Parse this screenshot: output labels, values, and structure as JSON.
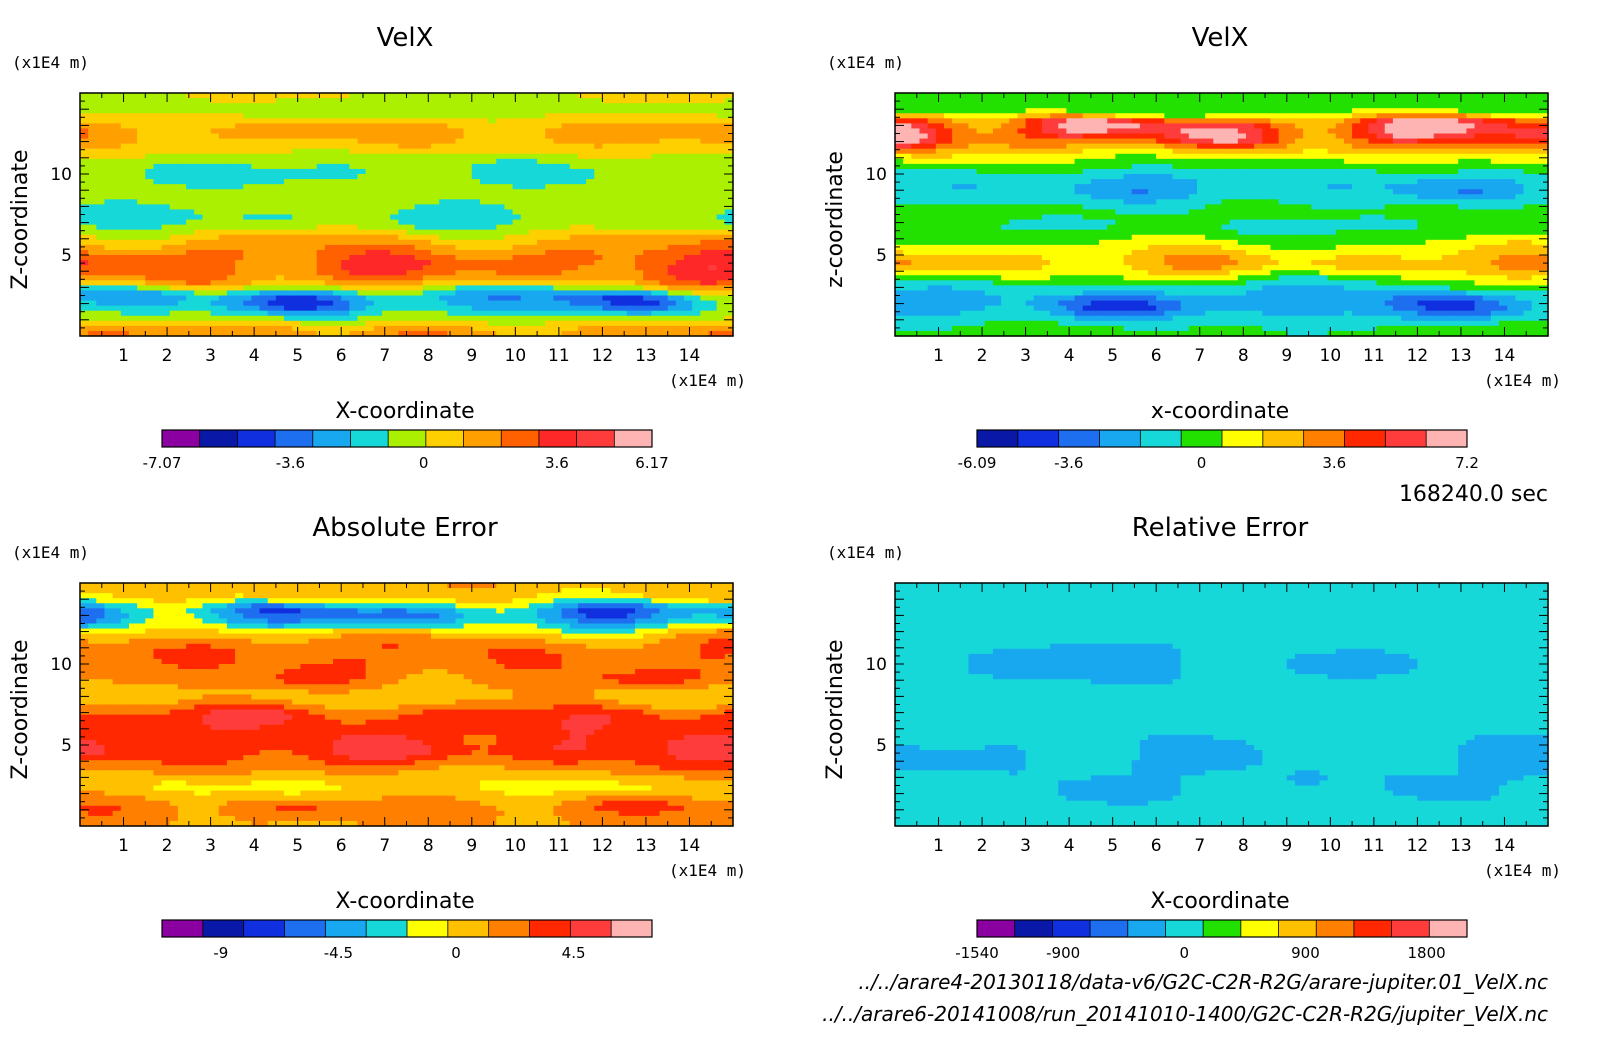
{
  "timestamp": "168240.0 sec",
  "files": [
    "../../arare4-20130118/data-v6/G2C-C2R-R2G/arare-jupiter.01_VelX.nc",
    "../../arare6-20141008/run_20141010-1400/G2C-C2R-R2G/jupiter_VelX.nc"
  ],
  "chart_data": [
    {
      "type": "heatmap",
      "title": "VelX",
      "xlabel": "X-coordinate",
      "ylabel": "Z-coordinate",
      "x_unit": "(x1E4 m)",
      "y_unit": "(x1E4 m)",
      "xlim": [
        0,
        15
      ],
      "ylim": [
        0,
        15
      ],
      "xticks": [
        "1",
        "2",
        "3",
        "4",
        "5",
        "6",
        "7",
        "8",
        "9",
        "10",
        "11",
        "12",
        "13",
        "14"
      ],
      "yticks": [
        "5",
        "10"
      ],
      "colorbar": {
        "colors": [
          "#8b00a0",
          "#0a18a8",
          "#1030e0",
          "#1e6ef0",
          "#18a8f0",
          "#16d8d8",
          "#aaf000",
          "#ffd000",
          "#ffa000",
          "#ff6000",
          "#ff2828",
          "#ff3c3c",
          "#ffb4b4"
        ],
        "labels": [
          "-7.07",
          "-3.6",
          "0",
          "3.6",
          "6.17"
        ],
        "min": -7.07,
        "max": 6.17
      },
      "field": [
        [
          11.3,
          0.3,
          1.5
        ],
        [
          12.0,
          1.6,
          1.0
        ],
        [
          12.5,
          2.0,
          0.8
        ],
        [
          13.6,
          -0.5,
          0.6
        ],
        [
          10.3,
          -2.0,
          1.3
        ],
        [
          9.7,
          -1.2,
          1.0
        ],
        [
          8.5,
          0.8,
          1.2
        ],
        [
          8.0,
          -1.5,
          1.0
        ],
        [
          7.0,
          -3.0,
          1.0
        ],
        [
          6.2,
          2.0,
          1.2
        ],
        [
          5.3,
          1.0,
          1.0
        ],
        [
          4.4,
          4.5,
          1.2
        ],
        [
          3.8,
          1.5,
          1.0
        ],
        [
          2.0,
          -4.5,
          1.2
        ],
        [
          1.0,
          1.0,
          1.0
        ],
        [
          0.3,
          2.5,
          0.6
        ]
      ]
    },
    {
      "type": "heatmap",
      "title": "VelX",
      "xlabel": "x-coordinate",
      "ylabel": "z-coordinate",
      "x_unit": "(x1E4 m)",
      "y_unit": "(x1E4 m)",
      "xlim": [
        0,
        15
      ],
      "ylim": [
        0,
        15
      ],
      "xticks": [
        "1",
        "2",
        "3",
        "4",
        "5",
        "6",
        "7",
        "8",
        "9",
        "10",
        "11",
        "12",
        "13",
        "14"
      ],
      "yticks": [
        "5",
        "10"
      ],
      "colorbar": {
        "colors": [
          "#0a18a8",
          "#1030e0",
          "#1e6ef0",
          "#18a8f0",
          "#16d8d8",
          "#22e000",
          "#ffff00",
          "#ffc000",
          "#ff8000",
          "#ff2800",
          "#ff3c3c",
          "#ffb4b4"
        ],
        "labels": [
          "-6.09",
          "-3.6",
          "0",
          "3.6",
          "7.2"
        ],
        "min": -6.09,
        "max": 7.2
      },
      "field": [
        [
          14.2,
          0.0,
          0.8
        ],
        [
          12.8,
          6.0,
          0.6
        ],
        [
          12.1,
          5.0,
          0.8
        ],
        [
          11.2,
          1.5,
          0.8
        ],
        [
          10.3,
          -0.5,
          1.0
        ],
        [
          9.0,
          -2.5,
          1.2
        ],
        [
          7.8,
          0.5,
          1.0
        ],
        [
          6.7,
          -1.2,
          1.0
        ],
        [
          5.5,
          0.5,
          1.0
        ],
        [
          4.5,
          3.5,
          1.2
        ],
        [
          3.2,
          -1.0,
          1.0
        ],
        [
          1.8,
          -4.0,
          1.2
        ],
        [
          0.7,
          0.5,
          1.0
        ]
      ]
    },
    {
      "type": "heatmap",
      "title": "Absolute Error",
      "xlabel": "X-coordinate",
      "ylabel": "Z-coordinate",
      "x_unit": "(x1E4 m)",
      "y_unit": "(x1E4 m)",
      "xlim": [
        0,
        15
      ],
      "ylim": [
        0,
        15
      ],
      "xticks": [
        "1",
        "2",
        "3",
        "4",
        "5",
        "6",
        "7",
        "8",
        "9",
        "10",
        "11",
        "12",
        "13",
        "14"
      ],
      "yticks": [
        "5",
        "10"
      ],
      "colorbar": {
        "colors": [
          "#8b00a0",
          "#0a18a8",
          "#1030e0",
          "#1e6ef0",
          "#18a8f0",
          "#16d8d8",
          "#ffff00",
          "#ffc000",
          "#ff8000",
          "#ff2800",
          "#ff3c3c",
          "#ffb4b4"
        ],
        "labels": [
          "-9",
          "-4.5",
          "0",
          "4.5"
        ],
        "min": -11.25,
        "max": 7.5
      },
      "field": [
        [
          14.3,
          1.0,
          0.8
        ],
        [
          12.8,
          -7.0,
          1.0
        ],
        [
          11.8,
          2.0,
          1.0
        ],
        [
          10.8,
          3.0,
          1.0
        ],
        [
          9.8,
          2.0,
          1.0
        ],
        [
          9.0,
          3.5,
          1.0
        ],
        [
          8.0,
          -2.0,
          1.0
        ],
        [
          6.8,
          5.0,
          1.2
        ],
        [
          5.5,
          2.0,
          1.0
        ],
        [
          4.7,
          6.0,
          1.2
        ],
        [
          3.6,
          1.0,
          1.0
        ],
        [
          2.4,
          -1.5,
          1.0
        ],
        [
          1.2,
          3.0,
          1.0
        ],
        [
          0.3,
          1.0,
          0.6
        ]
      ]
    },
    {
      "type": "heatmap",
      "title": "Relative Error",
      "xlabel": "X-coordinate",
      "ylabel": "Z-coordinate",
      "x_unit": "(x1E4 m)",
      "y_unit": "(x1E4 m)",
      "xlim": [
        0,
        15
      ],
      "ylim": [
        0,
        15
      ],
      "xticks": [
        "1",
        "2",
        "3",
        "4",
        "5",
        "6",
        "7",
        "8",
        "9",
        "10",
        "11",
        "12",
        "13",
        "14"
      ],
      "yticks": [
        "5",
        "10"
      ],
      "colorbar": {
        "colors": [
          "#8b00a0",
          "#0a18a8",
          "#1030e0",
          "#1e6ef0",
          "#18a8f0",
          "#16d8d8",
          "#22e000",
          "#ffff00",
          "#ffc000",
          "#ff8000",
          "#ff2800",
          "#ff3c3c",
          "#ffb4b4"
        ],
        "labels": [
          "-1540",
          "-900",
          "0",
          "900",
          "1800"
        ],
        "min": -1540,
        "max": 2100
      },
      "field": [
        [
          13.5,
          0.0,
          1.5
        ],
        [
          10.0,
          -150.0,
          0.8
        ],
        [
          7.0,
          0.0,
          1.2
        ],
        [
          4.5,
          -150.0,
          0.8
        ],
        [
          2.0,
          -150.0,
          0.8
        ],
        [
          0.5,
          0.0,
          1.0
        ]
      ]
    }
  ]
}
